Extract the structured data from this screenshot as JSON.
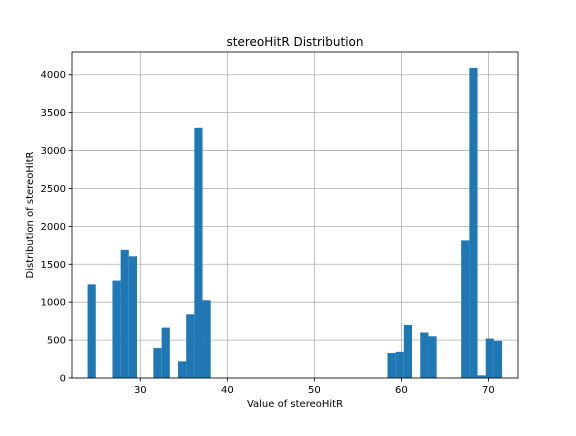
{
  "chart_data": {
    "type": "bar",
    "title": "stereoHitR Distribution",
    "xlabel": "Value of stereoHitR",
    "ylabel": "Distribution of stereoHitR",
    "xlim": [
      22.15,
      73.4
    ],
    "ylim": [
      0,
      4300
    ],
    "xticks": [
      30,
      40,
      50,
      60,
      70
    ],
    "yticks": [
      0,
      500,
      1000,
      1500,
      2000,
      2500,
      3000,
      3500,
      4000
    ],
    "grid": true,
    "bar_color": "#1f77b4",
    "bin_width": 0.94,
    "bins": [
      {
        "x": 23.94,
        "value": 1235
      },
      {
        "x": 26.8,
        "value": 1285
      },
      {
        "x": 27.74,
        "value": 1690
      },
      {
        "x": 28.68,
        "value": 1605
      },
      {
        "x": 31.5,
        "value": 395
      },
      {
        "x": 32.45,
        "value": 665
      },
      {
        "x": 34.33,
        "value": 220
      },
      {
        "x": 35.27,
        "value": 840
      },
      {
        "x": 36.21,
        "value": 3300
      },
      {
        "x": 37.15,
        "value": 1025
      },
      {
        "x": 58.4,
        "value": 330
      },
      {
        "x": 59.34,
        "value": 345
      },
      {
        "x": 60.28,
        "value": 700
      },
      {
        "x": 62.17,
        "value": 600
      },
      {
        "x": 63.11,
        "value": 550
      },
      {
        "x": 66.87,
        "value": 1815
      },
      {
        "x": 67.81,
        "value": 4090
      },
      {
        "x": 68.75,
        "value": 35
      },
      {
        "x": 69.69,
        "value": 520
      },
      {
        "x": 70.63,
        "value": 490
      }
    ]
  }
}
